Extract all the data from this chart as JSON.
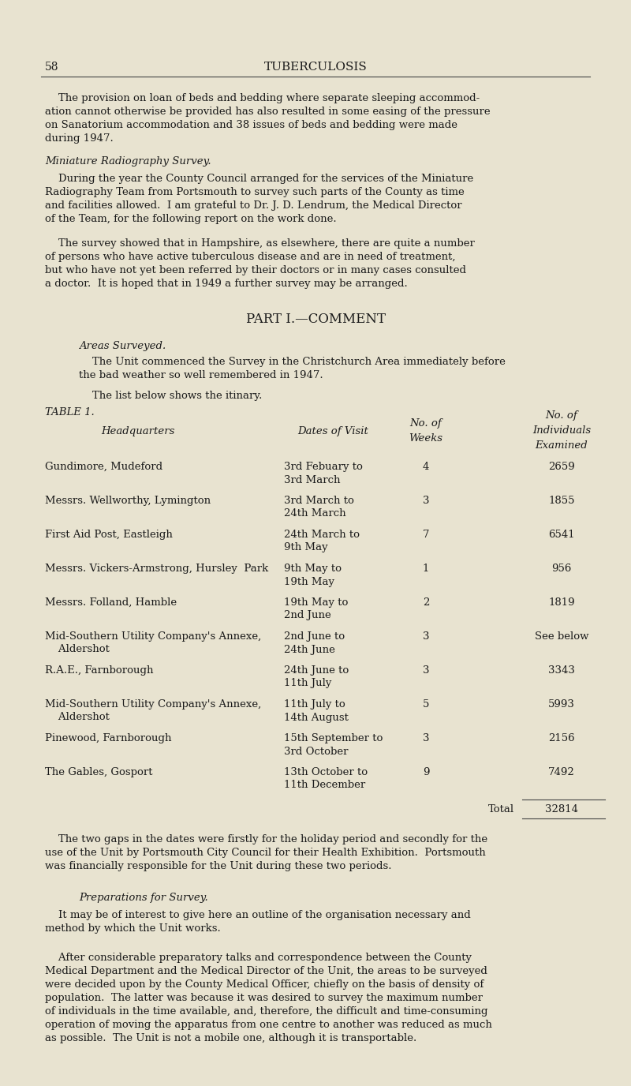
{
  "page_number": "58",
  "page_title": "TUBERCULOSIS",
  "bg_color": "#e8e3d0",
  "text_color": "#1a1a1a",
  "section_title": "PART I.—COMMENT",
  "subsection_title": "Areas Surveyed.",
  "table_label": "TABLE 1.",
  "table_total_label": "Total",
  "table_total_value": "32814",
  "table_rows": [
    [
      "Gundimore, Mudeford",
      "3rd Febuary to\n3rd March",
      "4",
      "2659"
    ],
    [
      "Messrs. Wellworthy, Lymington",
      "3rd March to\n24th March",
      "3",
      "1855"
    ],
    [
      "First Aid Post, Eastleigh",
      "24th March to\n9th May",
      "7",
      "6541"
    ],
    [
      "Messrs. Vickers-Armstrong, Hursley  Park",
      "9th May to\n19th May",
      "1",
      "956"
    ],
    [
      "Messrs. Folland, Hamble",
      "19th May to\n2nd June",
      "2",
      "1819"
    ],
    [
      "Mid-Southern Utility Company's Annexe,\n    Aldershot",
      "2nd June to\n24th June",
      "3",
      "See below"
    ],
    [
      "R.A.E., Farnborough",
      "24th June to\n11th July",
      "3",
      "3343"
    ],
    [
      "Mid-Southern Utility Company's Annexe,\n    Aldershot",
      "11th July to\n14th August",
      "5",
      "5993"
    ],
    [
      "Pinewood, Farnborough",
      "15th September to\n3rd October",
      "3",
      "2156"
    ],
    [
      "The Gables, Gosport",
      "13th October to\n11th December",
      "9",
      "7492"
    ]
  ]
}
